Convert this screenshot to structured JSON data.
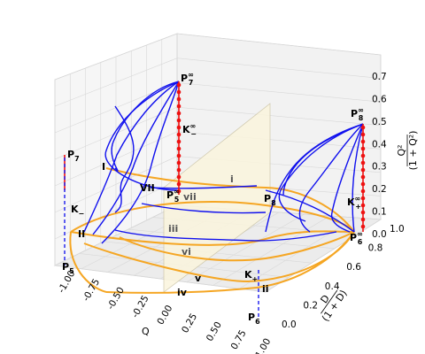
{
  "chart_data": {
    "type": "3d-line",
    "xlabel": "Q",
    "ylabel": "D/(1+D)",
    "zlabel": "Q²/(1+Q²)",
    "xlim": [
      -1.0,
      1.0
    ],
    "ylim": [
      0.0,
      1.0
    ],
    "zlim": [
      0.0,
      0.7
    ],
    "x_ticks": [
      "-1.00",
      "-0.75",
      "-0.50",
      "-0.25",
      "0.00",
      "0.25",
      "0.50",
      "0.75",
      "1.00"
    ],
    "y_ticks": [
      "0.0",
      "0.2",
      "0.4",
      "0.6",
      "0.8",
      "1.0"
    ],
    "z_ticks": [
      "0.0",
      "0.1",
      "0.2",
      "0.3",
      "0.4",
      "0.5",
      "0.6",
      "0.7"
    ],
    "grid": true,
    "points": [
      {
        "label": "P₇",
        "x": -1.0,
        "y": 1.0,
        "z": 0.5
      },
      {
        "label": "P₇^∞",
        "x": 0.0,
        "y": 1.0,
        "z": 0.5
      },
      {
        "label": "P₈^∞",
        "x": 1.0,
        "y": 1.0,
        "z": 0.5
      },
      {
        "label": "P₅",
        "x": -1.0,
        "y": 0.0,
        "z": 0.5
      },
      {
        "label": "P₆",
        "x": 1.0,
        "y": 0.0,
        "z": 0.5
      },
      {
        "label": "P₈",
        "x": 1.0,
        "y": 1.0,
        "z": 0.5
      },
      {
        "label": "P₆^∞",
        "x": 0.0,
        "y": 0.0,
        "z": 0.5
      },
      {
        "label": "P₅^∞",
        "x": 0.0,
        "y": 0.5,
        "z": 0.5
      }
    ],
    "curve_labels": [
      "K₋",
      "K₋^∞",
      "K₊^∞",
      "K₊"
    ],
    "region_labels": [
      "I",
      "II",
      "VII",
      "i",
      "ii",
      "iii",
      "iv",
      "v",
      "vi",
      "vii"
    ],
    "colors": {
      "trajectory": "#1010ee",
      "boundary": "#f5a623",
      "invariant": "#ee1111",
      "axis_dashed": "#1a1aee",
      "plane": "#fbf5dd"
    }
  }
}
